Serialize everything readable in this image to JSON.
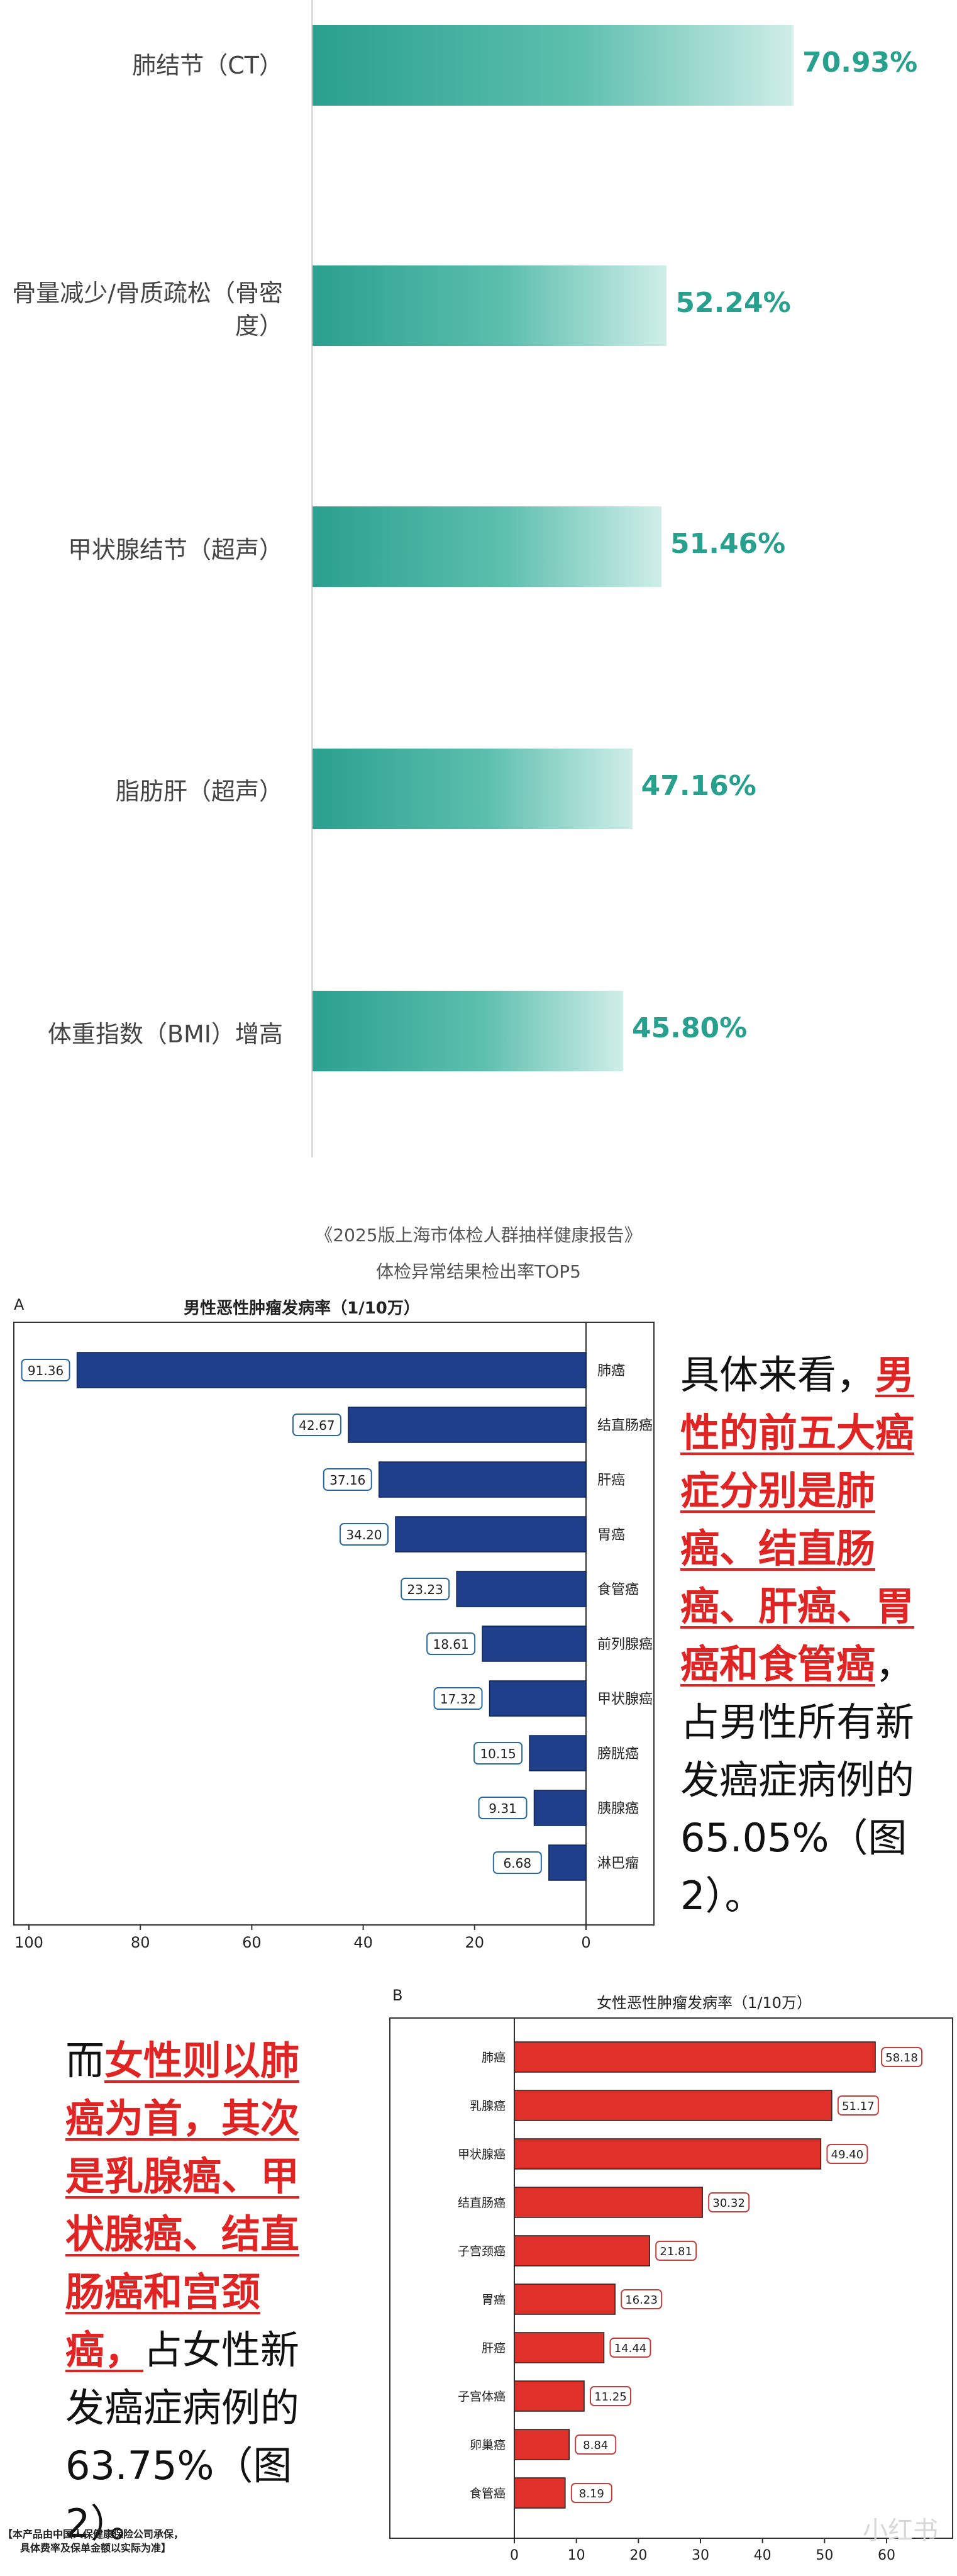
{
  "chart_top": {
    "type": "bar",
    "categories": [
      "肺结节（CT）",
      "骨量减少/骨质疏松（骨密度）",
      "甲状腺结节（超声）",
      "脂肪肝（超声）",
      "体重指数（BMI）增高"
    ],
    "values": [
      70.93,
      52.24,
      51.46,
      47.16,
      45.8
    ],
    "value_labels": [
      "70.93%",
      "52.24%",
      "51.46%",
      "47.16%",
      "45.80%"
    ],
    "unit": "%",
    "bar_color_start": "#2aa08e",
    "bar_color_end": "#cfeee8",
    "source": "《2025版上海市体检人群抽样健康报告》",
    "title": "体检异常结果检出率TOP5"
  },
  "chart_data": [
    {
      "type": "bar",
      "panel": "A",
      "title": "男性恶性肿瘤发病率（1/10万）",
      "categories": [
        "肺癌",
        "结直肠癌",
        "肝癌",
        "胃癌",
        "食管癌",
        "前列腺癌",
        "甲状腺癌",
        "膀胱癌",
        "胰腺癌",
        "淋巴瘤"
      ],
      "values": [
        91.36,
        42.67,
        37.16,
        34.2,
        23.23,
        18.61,
        17.32,
        10.15,
        9.31,
        6.68
      ],
      "value_labels": [
        "91.36",
        "42.67",
        "37.16",
        "34.20",
        "23.23",
        "18.61",
        "17.32",
        "10.15",
        "9.31",
        "6.68"
      ],
      "xlim": [
        100,
        0
      ],
      "xticks": [
        "100",
        "80",
        "60",
        "40",
        "20",
        "0"
      ],
      "orientation": "horizontal-reversed",
      "color": "#1f3f8a"
    },
    {
      "type": "bar",
      "panel": "B",
      "title": "女性恶性肿瘤发病率（1/10万）",
      "categories": [
        "肺癌",
        "乳腺癌",
        "甲状腺癌",
        "结直肠癌",
        "子宫颈癌",
        "胃癌",
        "肝癌",
        "子宫体癌",
        "卵巢癌",
        "食管癌"
      ],
      "values": [
        58.18,
        51.17,
        49.4,
        30.32,
        21.81,
        16.23,
        14.44,
        11.25,
        8.84,
        8.19
      ],
      "value_labels": [
        "58.18",
        "51.17",
        "49.40",
        "30.32",
        "21.81",
        "16.23",
        "14.44",
        "11.25",
        "8.84",
        "8.19"
      ],
      "xlim": [
        0,
        60
      ],
      "xticks": [
        "0",
        "10",
        "20",
        "30",
        "40",
        "50",
        "60"
      ],
      "orientation": "horizontal",
      "color": "#e0302a"
    }
  ],
  "text_male": {
    "p1": "具体来看，",
    "highlight": "男性的前五大癌症分别是肺癌、结直肠癌、肝癌、胃癌和食管癌",
    "p2": "，占男性所有新发癌症病例的65.05%（图2）。"
  },
  "text_female": {
    "p1": "而",
    "highlight": "女性则以肺癌为首，其次是乳腺癌、甲状腺癌、结直肠癌和宫颈癌，",
    "p2": "占女性新发癌症病例的63.75%（图2）。"
  },
  "footer": {
    "line1": "【本产品由中国人保健康保险公司承保，",
    "line2": "具体费率及保单金额以实际为准】"
  },
  "watermark": "小红书"
}
